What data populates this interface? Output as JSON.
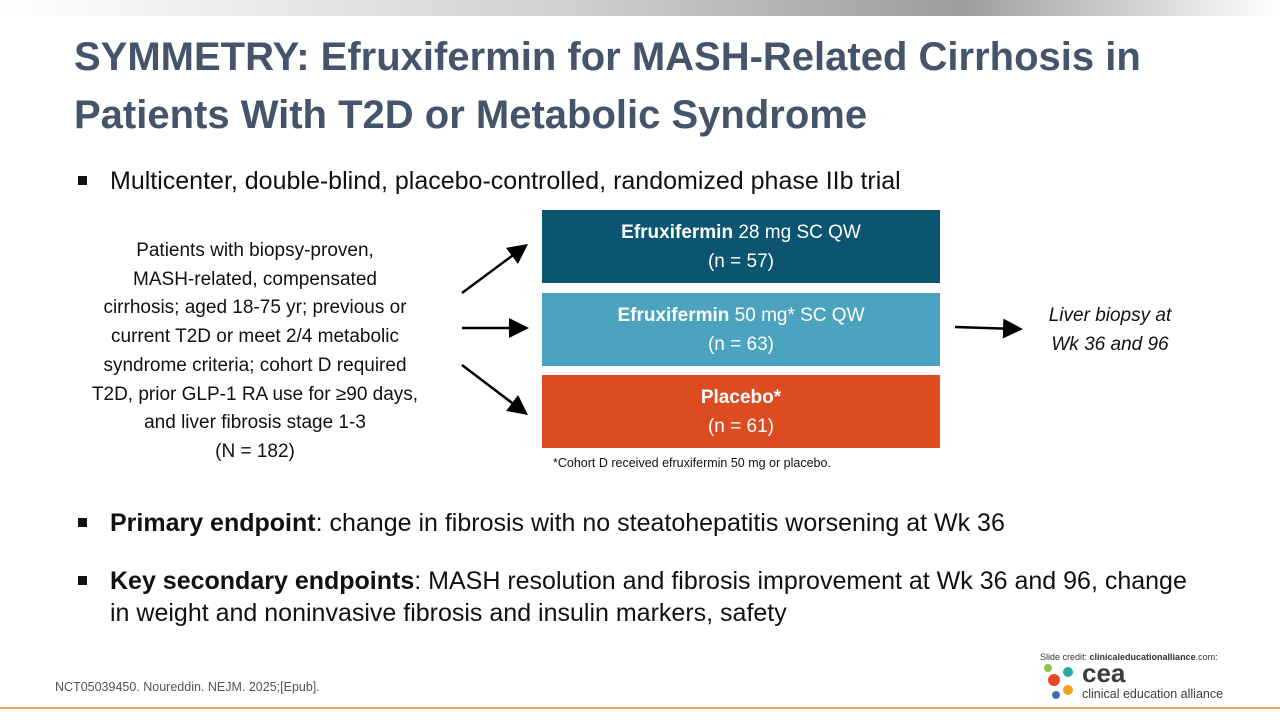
{
  "title": "SYMMETRY: Efruxifermin for MASH-Related Cirrhosis in Patients With T2D or Metabolic Syndrome",
  "design": "Multicenter, double-blind, placebo-controlled, randomized phase IIb trial",
  "population": [
    "Patients with biopsy-proven,",
    "MASH-related, compensated",
    "cirrhosis; aged 18-75 yr; previous or",
    "current T2D or meet 2/4 metabolic",
    "syndrome criteria; cohort D required",
    "T2D, prior GLP-1 RA use for ≥90 days,",
    "and liver fibrosis stage 1-3",
    "(N = 182)"
  ],
  "arms": [
    {
      "name": "Efruxifermin",
      "dose": " 28 mg SC QW",
      "n": "(n = 57)"
    },
    {
      "name": "Efruxifermin",
      "dose": " 50 mg* SC QW",
      "n": "(n = 63)"
    },
    {
      "name": "Placebo*",
      "n": "(n = 61)"
    }
  ],
  "footnote": "*Cohort D received efruxifermin 50 mg or placebo.",
  "outcome": [
    "Liver biopsy at",
    "Wk 36 and 96"
  ],
  "endpoints": [
    {
      "label": "Primary endpoint",
      "text": ": change in fibrosis with no steatohepatitis worsening at Wk 36"
    },
    {
      "label": "Key secondary endpoints",
      "text": ": MASH resolution and fibrosis improvement at Wk 36 and 96, change in weight and noninvasive fibrosis and insulin markers, safety"
    }
  ],
  "reference": "NCT05039450. Noureddin. NEJM. 2025;[Epub].",
  "credit": {
    "prefix": "Slide credit: ",
    "site": "clinicaleducationalliance",
    "suffix": ".com:"
  },
  "logo": {
    "word": "cea",
    "name": "clinical education alliance"
  }
}
